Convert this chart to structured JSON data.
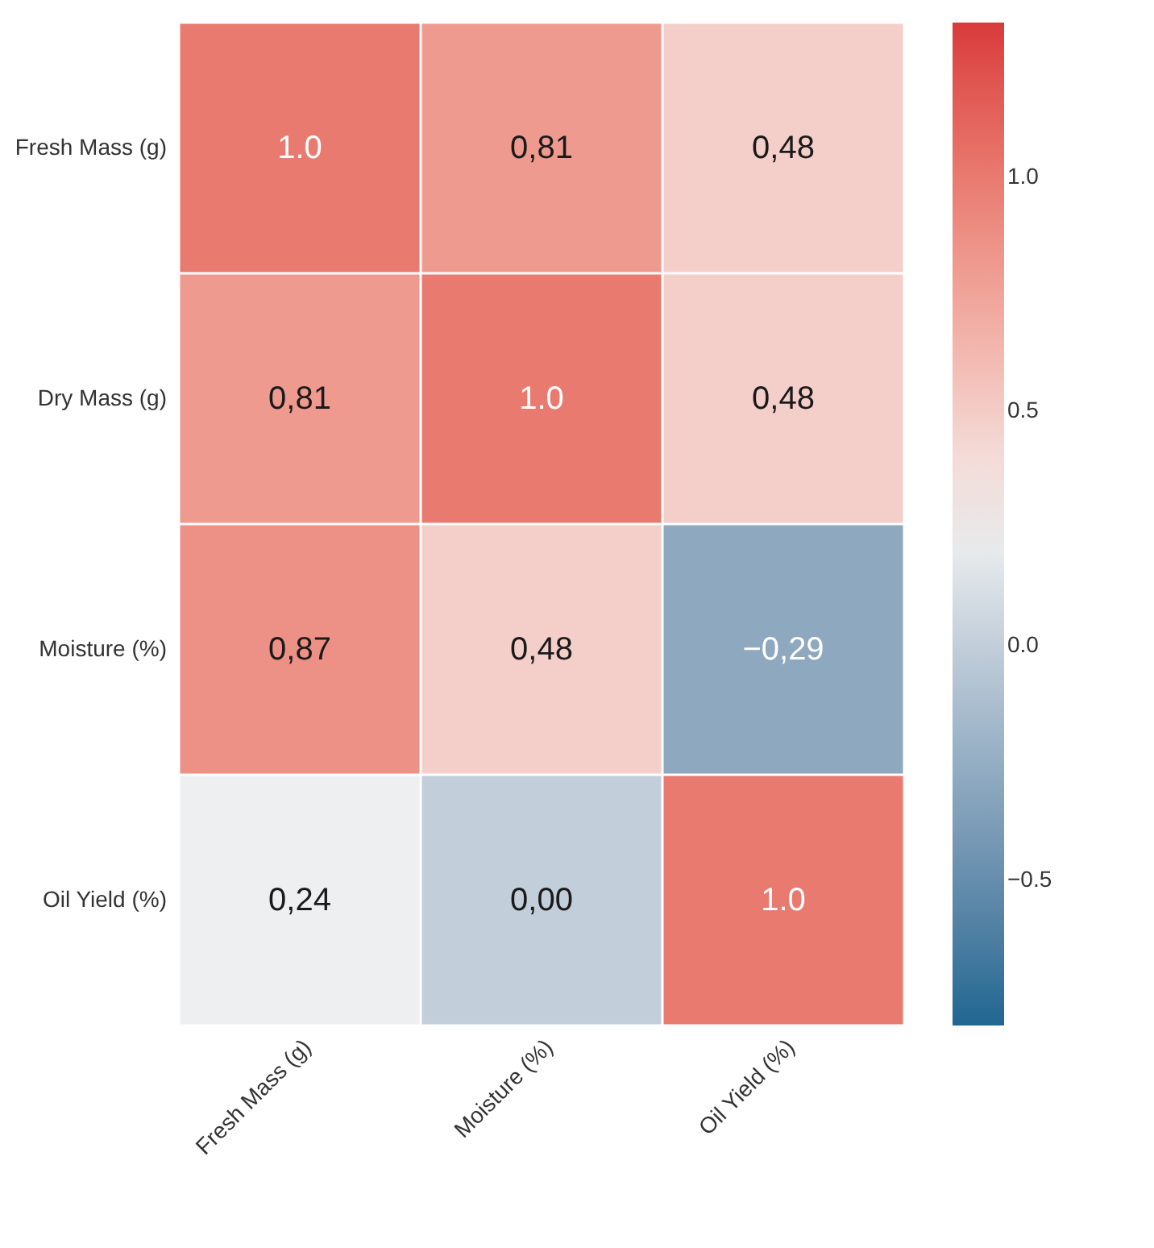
{
  "chart_data": {
    "type": "heatmap",
    "categories": [
      "Fresh Mass (g)",
      "Moisture (%)",
      "Oil Yield (%)"
    ],
    "y_categories": [
      "Fresh Mass (g)",
      "Dry Mass (g)",
      "Moisture (%)",
      "Oil Yield (%)"
    ],
    "cells": [
      [
        1.0,
        0.81,
        0.48
      ],
      [
        0.81,
        1.0,
        0.48
      ],
      [
        0.87,
        0.48,
        -0.29
      ],
      [
        0.24,
        0.0,
        1.0
      ]
    ],
    "cell_labels": [
      [
        "1.0",
        "0,81",
        "0,48"
      ],
      [
        "0,81",
        "1.0",
        "0,48"
      ],
      [
        "0,87",
        "0,48",
        "−0,29"
      ],
      [
        "0,24",
        "0,00",
        "1.0"
      ]
    ],
    "clim": [
      -0.81,
      1.33
    ],
    "cticks": [
      {
        "value": 1,
        "label": "1.0"
      },
      {
        "value": 0.5,
        "label": "0.5"
      },
      {
        "value": 0,
        "label": "0.0"
      },
      {
        "value": -0.5,
        "label": "−0.5"
      }
    ]
  }
}
